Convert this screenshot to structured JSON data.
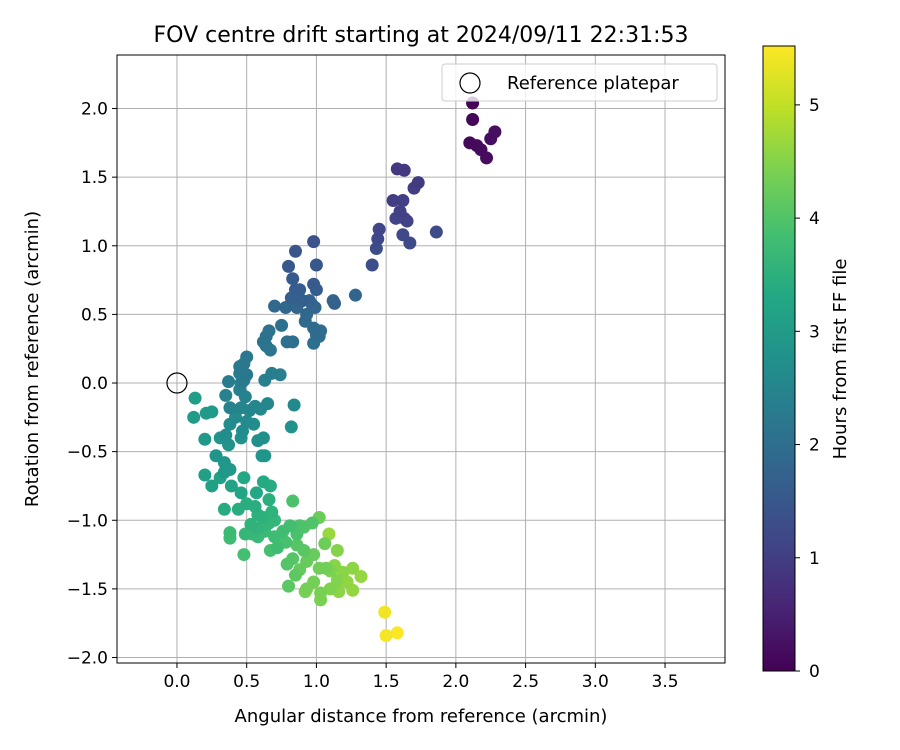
{
  "chart_data": {
    "type": "scatter",
    "title": "FOV centre drift starting at 2024/09/11 22:31:53",
    "xlabel": "Angular distance from reference (arcmin)",
    "ylabel": "Rotation from reference (arcmin)",
    "xlim": [
      -0.43,
      3.93
    ],
    "ylim": [
      -2.04,
      2.39
    ],
    "x_ticks": [
      "0.0",
      "0.5",
      "1.0",
      "1.5",
      "2.0",
      "2.5",
      "3.0",
      "3.5"
    ],
    "y_ticks": [
      "−2.0",
      "−1.5",
      "−1.0",
      "−0.5",
      "0.0",
      "0.5",
      "1.0",
      "1.5",
      "2.0"
    ],
    "grid": true,
    "legend": {
      "position": "top-right",
      "entries": [
        "Reference platepar"
      ]
    },
    "colorbar": {
      "label": "Hours from first FF file",
      "range": [
        0,
        5.52
      ],
      "ticks": [
        "0",
        "1",
        "2",
        "3",
        "4",
        "5"
      ],
      "colormap": "viridis"
    },
    "reference_point": {
      "x": 0.0,
      "y": 0.0
    },
    "points": [
      [
        2.12,
        2.04,
        0.05
      ],
      [
        2.12,
        1.92,
        0.08
      ],
      [
        2.1,
        1.75,
        0.12
      ],
      [
        2.15,
        1.73,
        0.14
      ],
      [
        2.18,
        1.7,
        0.16
      ],
      [
        2.22,
        1.64,
        0.18
      ],
      [
        2.25,
        1.78,
        0.2
      ],
      [
        2.28,
        1.83,
        0.22
      ],
      [
        1.58,
        1.56,
        0.9
      ],
      [
        1.63,
        1.55,
        0.92
      ],
      [
        1.73,
        1.46,
        0.95
      ],
      [
        1.7,
        1.42,
        0.98
      ],
      [
        1.55,
        1.33,
        1.0
      ],
      [
        1.62,
        1.33,
        1.02
      ],
      [
        1.6,
        1.25,
        1.05
      ],
      [
        1.63,
        1.2,
        1.08
      ],
      [
        1.57,
        1.2,
        1.1
      ],
      [
        1.65,
        1.18,
        1.12
      ],
      [
        1.45,
        1.12,
        1.15
      ],
      [
        1.44,
        1.05,
        1.18
      ],
      [
        1.62,
        1.08,
        1.2
      ],
      [
        1.67,
        1.02,
        1.22
      ],
      [
        1.86,
        1.1,
        1.25
      ],
      [
        1.43,
        0.98,
        1.28
      ],
      [
        1.4,
        0.86,
        1.32
      ],
      [
        0.98,
        1.03,
        1.4
      ],
      [
        0.85,
        0.96,
        1.45
      ],
      [
        1.0,
        0.86,
        1.5
      ],
      [
        0.8,
        0.85,
        1.52
      ],
      [
        0.83,
        0.76,
        1.55
      ],
      [
        0.98,
        0.72,
        1.58
      ],
      [
        1.0,
        0.68,
        1.6
      ],
      [
        0.85,
        0.68,
        1.62
      ],
      [
        0.88,
        0.68,
        1.64
      ],
      [
        0.82,
        0.62,
        1.66
      ],
      [
        0.9,
        0.6,
        1.68
      ],
      [
        0.95,
        0.6,
        1.7
      ],
      [
        1.12,
        0.6,
        1.72
      ],
      [
        1.13,
        0.58,
        1.74
      ],
      [
        1.28,
        0.64,
        1.76
      ],
      [
        0.97,
        0.57,
        1.78
      ],
      [
        0.99,
        0.55,
        1.8
      ],
      [
        0.86,
        0.55,
        1.82
      ],
      [
        0.78,
        0.55,
        1.84
      ],
      [
        0.7,
        0.56,
        1.86
      ],
      [
        0.93,
        0.5,
        1.88
      ],
      [
        0.92,
        0.45,
        1.9
      ],
      [
        0.98,
        0.4,
        1.92
      ],
      [
        1.03,
        0.38,
        1.94
      ],
      [
        1.0,
        0.35,
        1.96
      ],
      [
        1.02,
        0.34,
        1.98
      ],
      [
        0.98,
        0.29,
        2.0
      ],
      [
        0.83,
        0.3,
        2.02
      ],
      [
        0.79,
        0.3,
        2.04
      ],
      [
        0.75,
        0.42,
        2.06
      ],
      [
        0.66,
        0.38,
        2.08
      ],
      [
        0.64,
        0.34,
        2.1
      ],
      [
        0.62,
        0.3,
        2.12
      ],
      [
        0.64,
        0.27,
        2.14
      ],
      [
        0.67,
        0.24,
        2.16
      ],
      [
        0.5,
        0.19,
        2.18
      ],
      [
        0.48,
        0.14,
        2.2
      ],
      [
        0.45,
        0.12,
        2.22
      ],
      [
        0.5,
        0.06,
        2.24
      ],
      [
        0.48,
        0.02,
        2.26
      ],
      [
        0.45,
        0.07,
        2.28
      ],
      [
        0.37,
        0.01,
        2.3
      ],
      [
        0.46,
        0.0,
        2.32
      ],
      [
        0.68,
        0.07,
        2.34
      ],
      [
        0.74,
        0.06,
        2.36
      ],
      [
        0.63,
        0.02,
        2.38
      ],
      [
        0.45,
        -0.05,
        2.4
      ],
      [
        0.35,
        -0.09,
        2.42
      ],
      [
        0.49,
        -0.1,
        2.44
      ],
      [
        0.38,
        -0.18,
        2.46
      ],
      [
        0.46,
        -0.18,
        2.48
      ],
      [
        0.52,
        -0.2,
        2.5
      ],
      [
        0.56,
        -0.17,
        2.52
      ],
      [
        0.65,
        -0.15,
        2.54
      ],
      [
        0.6,
        -0.19,
        2.56
      ],
      [
        0.84,
        -0.16,
        2.58
      ],
      [
        0.42,
        -0.25,
        2.6
      ],
      [
        0.5,
        -0.28,
        2.62
      ],
      [
        0.47,
        -0.35,
        2.64
      ],
      [
        0.38,
        -0.3,
        2.66
      ],
      [
        0.35,
        -0.38,
        2.68
      ],
      [
        0.55,
        -0.3,
        2.7
      ],
      [
        0.58,
        -0.42,
        2.72
      ],
      [
        0.62,
        -0.4,
        2.74
      ],
      [
        0.46,
        -0.4,
        2.76
      ],
      [
        0.82,
        -0.32,
        2.78
      ],
      [
        0.37,
        -0.45,
        2.8
      ],
      [
        0.31,
        -0.4,
        2.82
      ],
      [
        0.28,
        -0.53,
        2.84
      ],
      [
        0.61,
        -0.53,
        2.86
      ],
      [
        0.63,
        -0.53,
        2.88
      ],
      [
        0.34,
        -0.58,
        2.9
      ],
      [
        0.38,
        -0.63,
        2.92
      ],
      [
        0.34,
        -0.65,
        2.94
      ],
      [
        0.2,
        -0.41,
        2.96
      ],
      [
        0.21,
        -0.22,
        2.98
      ],
      [
        0.25,
        -0.21,
        3.0
      ],
      [
        0.12,
        -0.25,
        3.02
      ],
      [
        0.13,
        -0.11,
        3.04
      ],
      [
        0.2,
        -0.67,
        3.1
      ],
      [
        0.25,
        -0.75,
        3.12
      ],
      [
        0.31,
        -0.69,
        3.15
      ],
      [
        0.39,
        -0.75,
        3.2
      ],
      [
        0.46,
        -0.8,
        3.25
      ],
      [
        0.48,
        -0.69,
        3.3
      ],
      [
        0.57,
        -0.8,
        3.32
      ],
      [
        0.62,
        -0.72,
        3.35
      ],
      [
        0.67,
        -0.75,
        3.38
      ],
      [
        0.34,
        -0.92,
        3.4
      ],
      [
        0.44,
        -0.92,
        3.42
      ],
      [
        0.5,
        -0.88,
        3.44
      ],
      [
        0.56,
        -0.9,
        3.46
      ],
      [
        0.66,
        -0.85,
        3.48
      ],
      [
        0.58,
        -0.96,
        3.5
      ],
      [
        0.62,
        -0.98,
        3.52
      ],
      [
        0.68,
        -0.94,
        3.54
      ],
      [
        0.53,
        -1.03,
        3.56
      ],
      [
        0.57,
        -1.06,
        3.58
      ],
      [
        0.61,
        -1.04,
        3.6
      ],
      [
        0.66,
        -1.02,
        3.62
      ],
      [
        0.7,
        -1.0,
        3.64
      ],
      [
        0.49,
        -1.1,
        3.66
      ],
      [
        0.54,
        -1.1,
        3.68
      ],
      [
        0.58,
        -1.12,
        3.7
      ],
      [
        0.63,
        -1.08,
        3.72
      ],
      [
        0.38,
        -1.09,
        3.74
      ],
      [
        0.38,
        -1.13,
        3.76
      ],
      [
        0.7,
        -1.12,
        3.78
      ],
      [
        0.72,
        -1.2,
        3.8
      ],
      [
        0.76,
        -1.08,
        3.82
      ],
      [
        0.81,
        -1.04,
        3.84
      ],
      [
        0.48,
        -1.25,
        3.86
      ],
      [
        0.67,
        -1.22,
        3.88
      ],
      [
        0.78,
        -1.16,
        3.9
      ],
      [
        0.86,
        -1.1,
        3.92
      ],
      [
        0.83,
        -0.86,
        3.94
      ],
      [
        0.88,
        -1.04,
        3.96
      ],
      [
        0.91,
        -1.05,
        3.98
      ],
      [
        0.97,
        -1.02,
        4.0
      ],
      [
        0.79,
        -1.32,
        4.02
      ],
      [
        0.83,
        -1.28,
        4.04
      ],
      [
        0.86,
        -1.18,
        4.06
      ],
      [
        0.91,
        -1.22,
        4.08
      ],
      [
        0.8,
        -1.48,
        4.1
      ],
      [
        0.85,
        -1.4,
        4.12
      ],
      [
        0.88,
        -1.36,
        4.2
      ],
      [
        0.93,
        -1.3,
        4.22
      ],
      [
        0.98,
        -1.25,
        4.24
      ],
      [
        1.02,
        -0.98,
        4.26
      ],
      [
        1.06,
        -1.17,
        4.28
      ],
      [
        1.02,
        -1.35,
        4.3
      ],
      [
        1.07,
        -1.35,
        4.32
      ],
      [
        0.98,
        -1.45,
        4.34
      ],
      [
        0.93,
        -1.5,
        4.36
      ],
      [
        0.92,
        -1.52,
        4.38
      ],
      [
        1.03,
        -1.53,
        4.4
      ],
      [
        1.03,
        -1.58,
        4.42
      ],
      [
        1.1,
        -1.37,
        4.44
      ],
      [
        1.1,
        -1.5,
        4.46
      ],
      [
        1.15,
        -1.44,
        4.48
      ],
      [
        1.15,
        -1.22,
        4.5
      ],
      [
        1.13,
        -1.33,
        4.52
      ],
      [
        1.19,
        -1.38,
        4.54
      ],
      [
        1.16,
        -1.52,
        4.56
      ],
      [
        1.26,
        -1.35,
        4.58
      ],
      [
        1.22,
        -1.45,
        4.6
      ],
      [
        1.26,
        -1.51,
        4.62
      ],
      [
        1.32,
        -1.41,
        4.64
      ],
      [
        1.09,
        -1.1,
        4.66
      ],
      [
        1.49,
        -1.67,
        5.4
      ],
      [
        1.5,
        -1.84,
        5.45
      ],
      [
        1.58,
        -1.82,
        5.5
      ]
    ]
  }
}
